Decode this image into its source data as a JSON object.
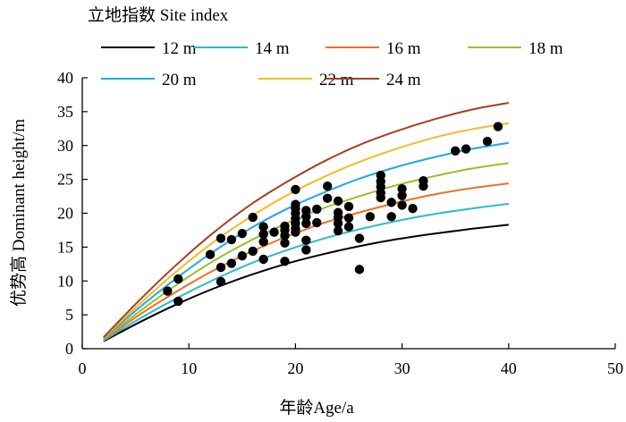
{
  "chart_data": {
    "type": "line",
    "legend_title": "立地指数 Site index",
    "legend_placement": "top-left",
    "xlabel": "年龄Age/a",
    "ylabel": "优势高 Dominant height/m",
    "xlim": [
      0,
      50
    ],
    "ylim": [
      0,
      40
    ],
    "x_ticks": [
      "0",
      "10",
      "20",
      "30",
      "40",
      "50"
    ],
    "y_ticks": [
      "0",
      "5",
      "10",
      "15",
      "20",
      "25",
      "30",
      "35",
      "40"
    ],
    "grid": false,
    "curve_x_range": [
      2,
      40
    ],
    "series": [
      {
        "name": "12 m",
        "color": "#000000",
        "values": [
          1.1,
          3.97,
          6.59,
          8.91,
          10.9,
          12.6,
          14.0,
          15.2,
          16.2,
          17.0,
          17.7,
          18.3
        ]
      },
      {
        "name": "14 m",
        "color": "#2ABBD0",
        "values": [
          1.2,
          4.5,
          7.5,
          10.2,
          12.6,
          14.6,
          16.3,
          17.7,
          18.9,
          19.9,
          20.7,
          21.4
        ]
      },
      {
        "name": "16 m",
        "color": "#F26E22",
        "values": [
          1.3,
          5.1,
          8.5,
          11.6,
          14.3,
          16.6,
          18.6,
          20.2,
          21.6,
          22.8,
          23.7,
          24.4
        ]
      },
      {
        "name": "18 m",
        "color": "#9BBE2E",
        "values": [
          1.4,
          5.6,
          9.5,
          13.0,
          16.0,
          18.6,
          20.8,
          22.6,
          24.2,
          25.5,
          26.6,
          27.4
        ]
      },
      {
        "name": "20 m",
        "color": "#1FA9E6",
        "values": [
          1.5,
          6.2,
          10.5,
          14.4,
          17.8,
          20.7,
          23.1,
          25.2,
          26.9,
          28.3,
          29.5,
          30.4
        ]
      },
      {
        "name": "22 m",
        "color": "#F7B926",
        "values": [
          1.6,
          6.7,
          11.5,
          15.8,
          19.5,
          22.7,
          25.4,
          27.7,
          29.6,
          31.2,
          32.4,
          33.3
        ]
      },
      {
        "name": "24 m",
        "color": "#A83E1E",
        "values": [
          1.7,
          7.3,
          12.5,
          17.2,
          21.3,
          24.7,
          27.7,
          30.2,
          32.2,
          33.9,
          35.3,
          36.3
        ]
      }
    ],
    "scatter": {
      "color": "#000000",
      "points": [
        [
          8,
          8.5
        ],
        [
          9,
          10.3
        ],
        [
          9,
          7.0
        ],
        [
          12,
          13.9
        ],
        [
          13,
          16.3
        ],
        [
          13,
          12.0
        ],
        [
          13,
          9.9
        ],
        [
          14,
          16.1
        ],
        [
          14,
          12.6
        ],
        [
          15,
          17.0
        ],
        [
          15,
          13.7
        ],
        [
          16,
          19.4
        ],
        [
          16,
          14.4
        ],
        [
          17,
          18.0
        ],
        [
          17,
          16.9
        ],
        [
          17,
          15.8
        ],
        [
          17,
          13.2
        ],
        [
          18,
          17.2
        ],
        [
          19,
          18.1
        ],
        [
          19,
          17.5
        ],
        [
          19,
          16.7
        ],
        [
          19,
          15.6
        ],
        [
          19,
          12.9
        ],
        [
          20,
          23.5
        ],
        [
          20,
          21.3
        ],
        [
          20,
          20.7
        ],
        [
          20,
          20.0
        ],
        [
          20,
          19.2
        ],
        [
          20,
          18.5
        ],
        [
          20,
          17.7
        ],
        [
          20,
          17.2
        ],
        [
          21,
          20.4
        ],
        [
          21,
          19.5
        ],
        [
          21,
          18.5
        ],
        [
          21,
          16.0
        ],
        [
          21,
          14.6
        ],
        [
          22,
          20.6
        ],
        [
          22,
          18.6
        ],
        [
          23,
          24.0
        ],
        [
          23,
          22.2
        ],
        [
          24,
          21.8
        ],
        [
          24,
          20.1
        ],
        [
          24,
          19.4
        ],
        [
          24,
          18.5
        ],
        [
          24,
          17.4
        ],
        [
          25,
          21.0
        ],
        [
          25,
          19.3
        ],
        [
          25,
          18.0
        ],
        [
          26,
          16.3
        ],
        [
          26,
          11.7
        ],
        [
          27,
          19.5
        ],
        [
          28,
          25.6
        ],
        [
          28,
          24.7
        ],
        [
          28,
          23.9
        ],
        [
          28,
          23.0
        ],
        [
          28,
          22.3
        ],
        [
          29,
          21.6
        ],
        [
          29,
          19.5
        ],
        [
          30,
          23.6
        ],
        [
          30,
          22.6
        ],
        [
          30,
          21.2
        ],
        [
          31,
          20.7
        ],
        [
          32,
          24.8
        ],
        [
          32,
          24.0
        ],
        [
          35,
          29.2
        ],
        [
          36,
          29.5
        ],
        [
          38,
          30.6
        ],
        [
          39,
          32.8
        ]
      ]
    }
  }
}
